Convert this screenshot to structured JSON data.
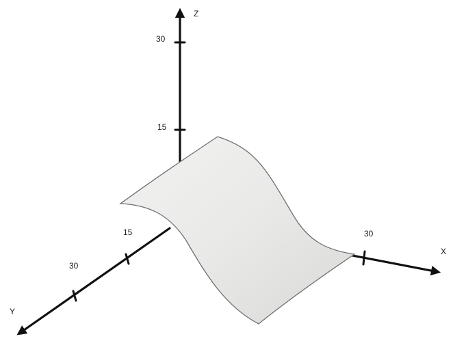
{
  "axes": {
    "x": {
      "name": "X",
      "tick_labels": [
        "30"
      ]
    },
    "y": {
      "name": "Y",
      "tick_labels": [
        "15",
        "30"
      ]
    },
    "z": {
      "name": "Z",
      "tick_labels": [
        "15",
        "30"
      ]
    }
  },
  "colors": {
    "axis": "#111111",
    "surface_fill": "#ebebea",
    "surface_edge": "#6f6f6f"
  }
}
